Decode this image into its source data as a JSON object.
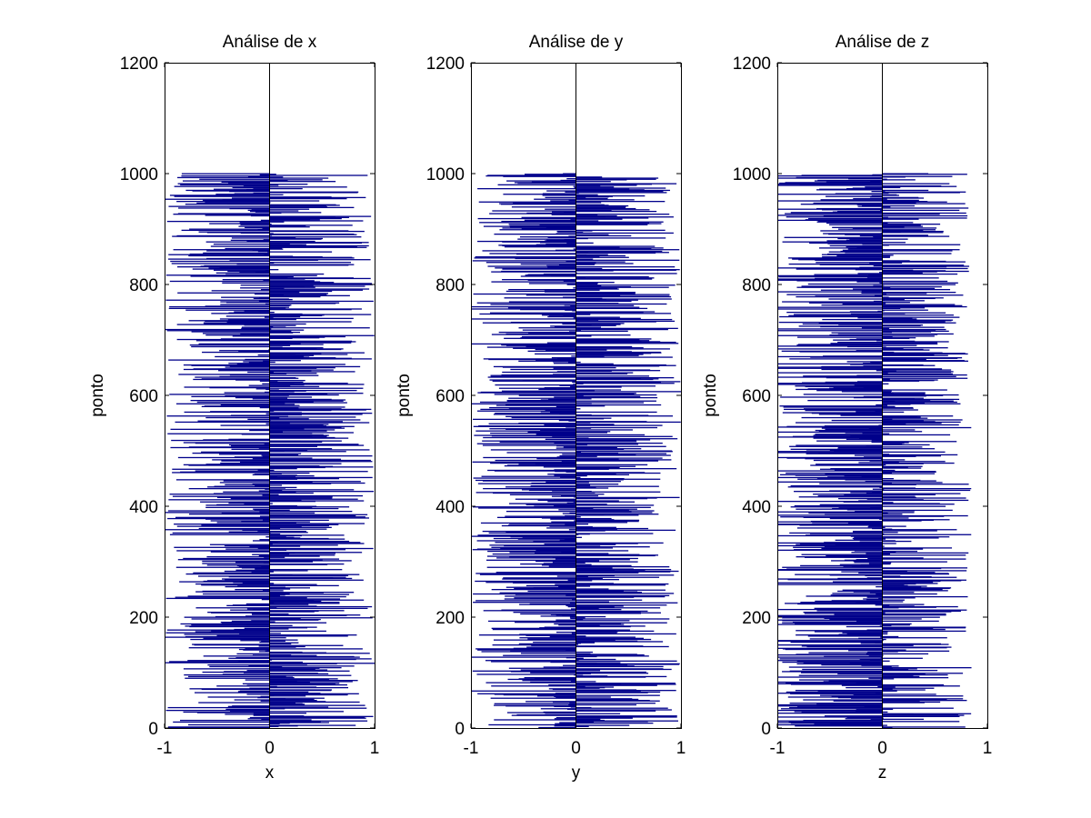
{
  "chart_data": [
    {
      "type": "bar",
      "orientation": "horizontal",
      "title": "Análise de x",
      "xlabel": "x",
      "ylabel": "ponto",
      "xlim": [
        -1,
        1
      ],
      "ylim": [
        0,
        1200
      ],
      "xticks": [
        "-1",
        "0",
        "1"
      ],
      "yticks": [
        "0",
        "200",
        "400",
        "600",
        "800",
        "1000",
        "1200"
      ],
      "n_points": 1000,
      "value_range": [
        -1,
        1
      ],
      "distribution": "uniform random values in [-1, 1] for points 1–1000",
      "bar_color": "#00008b",
      "grid": false
    },
    {
      "type": "bar",
      "orientation": "horizontal",
      "title": "Análise de y",
      "xlabel": "y",
      "ylabel": "ponto",
      "xlim": [
        -1,
        1
      ],
      "ylim": [
        0,
        1200
      ],
      "xticks": [
        "-1",
        "0",
        "1"
      ],
      "yticks": [
        "0",
        "200",
        "400",
        "600",
        "800",
        "1000",
        "1200"
      ],
      "n_points": 1000,
      "value_range": [
        -1,
        1
      ],
      "distribution": "uniform random values in [-1, 1] for points 1–1000",
      "bar_color": "#00008b",
      "grid": false
    },
    {
      "type": "bar",
      "orientation": "horizontal",
      "title": "Análise de z",
      "xlabel": "z",
      "ylabel": "ponto",
      "xlim": [
        -1,
        1
      ],
      "ylim": [
        0,
        1200
      ],
      "xticks": [
        "-1",
        "0",
        "1"
      ],
      "yticks": [
        "0",
        "200",
        "400",
        "600",
        "800",
        "1000",
        "1200"
      ],
      "n_points": 1000,
      "value_range": [
        -1,
        1
      ],
      "distribution": "uniform random values in [-1, 1] for points 1–1000, skewed toward negative values",
      "bar_color": "#00008b",
      "grid": false
    }
  ]
}
